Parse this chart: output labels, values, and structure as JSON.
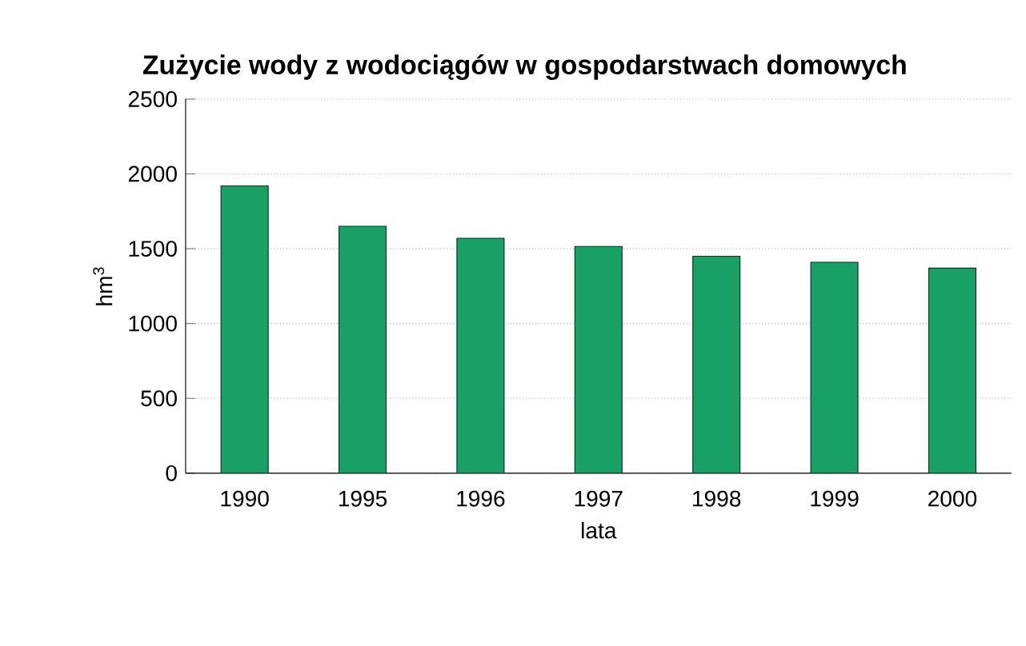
{
  "chart_data": {
    "type": "bar",
    "title": "Zużycie wody z wodociągów w gospodarstwach domowych",
    "xlabel": "lata",
    "ylabel": "hm$^{3}$",
    "categories": [
      "1990",
      "1995",
      "1996",
      "1997",
      "1998",
      "1999",
      "2000"
    ],
    "values": [
      1920,
      1650,
      1570,
      1515,
      1450,
      1410,
      1370
    ],
    "color": "#19a067",
    "ylim": [
      0,
      2500
    ],
    "yticks": [
      0,
      500,
      1000,
      1500,
      2000,
      2500
    ],
    "grid": "y"
  }
}
